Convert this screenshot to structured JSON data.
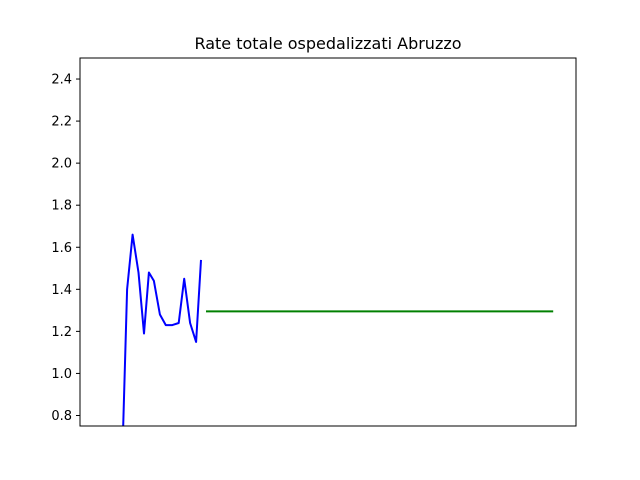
{
  "chart_data": {
    "type": "line",
    "title": "Rate totale ospedalizzati Abruzzo",
    "xlabel": "",
    "ylabel": "",
    "xlim": [
      0,
      100
    ],
    "ylim": [
      0.75,
      2.5
    ],
    "yticks": [
      0.8,
      1.0,
      1.2,
      1.4,
      1.6,
      1.8,
      2.0,
      2.2,
      2.4
    ],
    "ytick_labels": [
      "0.8",
      "1.0",
      "1.2",
      "1.4",
      "1.6",
      "1.8",
      "2.0",
      "2.2",
      "2.4"
    ],
    "grid": false,
    "series": [
      {
        "color": "#0000ff",
        "x": [
          8.7,
          9.5,
          10.6,
          11.8,
          12.9,
          13.9,
          14.9,
          16.1,
          17.3,
          18.6,
          19.9,
          21.0,
          22.2,
          23.4,
          24.4
        ],
        "y": [
          0.75,
          1.4,
          1.66,
          1.48,
          1.19,
          1.48,
          1.44,
          1.28,
          1.23,
          1.23,
          1.24,
          1.45,
          1.24,
          1.15,
          1.54
        ]
      },
      {
        "color": "#008000",
        "x": [
          25.4,
          95.4
        ],
        "y": [
          1.295,
          1.295
        ]
      }
    ]
  }
}
